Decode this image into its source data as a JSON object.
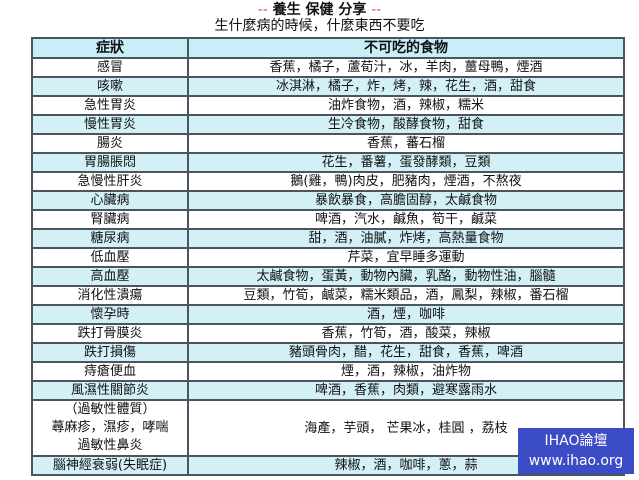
{
  "title": "養生 保健 分享",
  "title_dash": "--",
  "subtitle": "生什麼病的時候，什麼東西不要吃",
  "table": {
    "headers": [
      "症狀",
      "不可吃的食物"
    ],
    "rows": [
      {
        "symptom": "感冒",
        "foods": "香蕉，橘子，蘆荀汁，冰，羊肉，薑母鴨，煙酒"
      },
      {
        "symptom": "咳嗽",
        "foods": "冰淇淋，橘子，炸，烤，辣，花生，酒，甜食"
      },
      {
        "symptom": "急性胃炎",
        "foods": "油炸食物，酒，辣椒，糯米"
      },
      {
        "symptom": "慢性胃炎",
        "foods": "生冷食物，酸酵食物，甜食"
      },
      {
        "symptom": "腸炎",
        "foods": "香蕉，蕃石榴"
      },
      {
        "symptom": "胃腸脹悶",
        "foods": "花生，番薯，蛋發酵類，豆類"
      },
      {
        "symptom": "急慢性肝炎",
        "foods": "鵝(雞，鴨)肉皮，肥豬肉，煙酒，不熬夜"
      },
      {
        "symptom": "心臟病",
        "foods": "暴飲暴食，高膽固醇，太鹹食物"
      },
      {
        "symptom": "腎臟病",
        "foods": "啤酒，汽水，鹹魚，筍干，鹹菜"
      },
      {
        "symptom": "糖尿病",
        "foods": "甜，酒，油膩，炸烤，高熱量食物"
      },
      {
        "symptom": "低血壓",
        "foods": "芹菜，宜早睡多運動"
      },
      {
        "symptom": "高血壓",
        "foods": "太鹹食物，蛋黃，動物內臟，乳酪，動物性油，腦髓"
      },
      {
        "symptom": "消化性潰瘍",
        "foods": "豆類，竹筍，鹹菜，糯米類品，酒，鳳梨，辣椒，番石榴"
      },
      {
        "symptom": "懷孕時",
        "foods": "酒，煙，咖啡"
      },
      {
        "symptom": "跌打骨膜炎",
        "foods": "香蕉，竹筍，酒，酸菜，辣椒"
      },
      {
        "symptom": "跌打損傷",
        "foods": "豬頭骨肉，醋，花生，甜食，香蕉，啤酒"
      },
      {
        "symptom": "痔瘡便血",
        "foods": "煙，酒，辣椒，油炸物"
      },
      {
        "symptom": "風濕性關節炎",
        "foods": "啤酒，香蕉，肉類，避寒露雨水"
      },
      {
        "symptom_lines": [
          "（過敏性體質）",
          "蕁麻疹，濕疹，哮喘",
          "過敏性鼻炎"
        ],
        "foods": "海產，芋頭， 芒果冰，桂圓 ，荔枝"
      },
      {
        "symptom": "腦神經衰弱(失眠症)",
        "foods": "辣椒，酒，咖啡，蔥，蒜"
      }
    ]
  },
  "watermark": {
    "line1": "IHAO論壇",
    "line2": "www.ihao.org"
  },
  "colors": {
    "header_bg": "#c8eef6",
    "alt_row_bg": "#d2f0f6",
    "border": "#4a5560",
    "watermark_bg": "#3c4cc4"
  }
}
